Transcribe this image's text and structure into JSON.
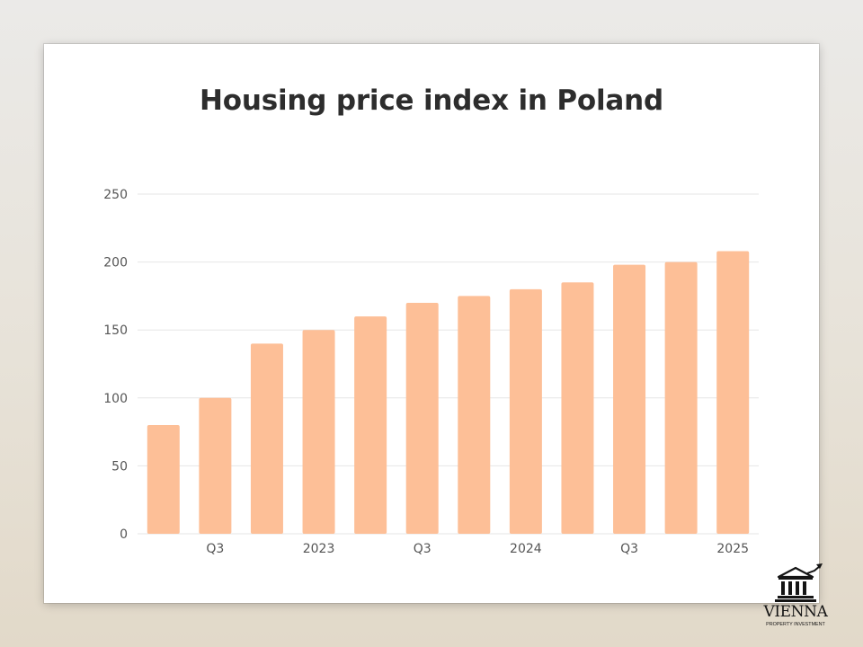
{
  "chart_data": {
    "type": "bar",
    "title": "Housing price index in Poland",
    "xlabel": "",
    "ylabel": "",
    "ylim": [
      0,
      250
    ],
    "yticks": [
      0,
      50,
      100,
      150,
      200,
      250
    ],
    "grid": true,
    "categories": [
      "",
      "Q3",
      "",
      "2023",
      "",
      "Q3",
      "",
      "2024",
      "",
      "Q3",
      "",
      "2025"
    ],
    "values": [
      80,
      100,
      140,
      150,
      160,
      170,
      175,
      180,
      185,
      198,
      200,
      208
    ],
    "bar_color": "#fdbf97",
    "grid_color": "#e6e6e6",
    "tick_color": "#555555"
  },
  "branding": {
    "name": "VIENNA",
    "tagline": "PROPERTY INVESTMENT",
    "icon": "building-growth-icon"
  }
}
